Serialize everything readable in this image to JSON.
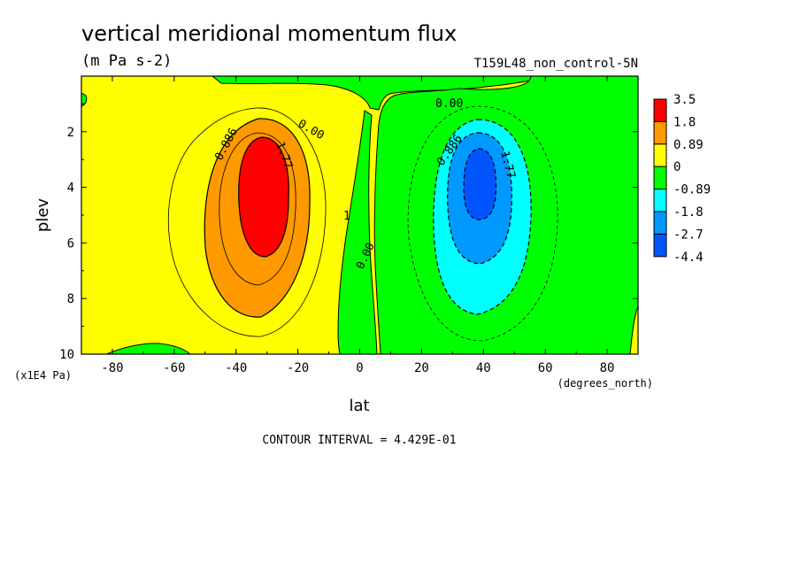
{
  "chart_data": {
    "type": "heatmap",
    "title": "vertical meridional momentum flux",
    "subtitle": "(m Pa s-2)",
    "run_label": "T159L48_non_control-5N",
    "xlabel": "lat",
    "xunits": "(degrees_north)",
    "ylabel": "plev",
    "yunits": "(x1E4 Pa)",
    "xlim": [
      -90,
      90
    ],
    "ylim": [
      10,
      0
    ],
    "x_ticks": [
      -80,
      -60,
      -40,
      -20,
      0,
      20,
      40,
      60,
      80
    ],
    "y_ticks": [
      2,
      4,
      6,
      8,
      10
    ],
    "contour_interval_label": "CONTOUR INTERVAL = 4.429E-01",
    "contour_labels": [
      "0.886",
      "1.77",
      "0.00",
      "0.00",
      "0.00",
      "0.886",
      "1.77",
      "1"
    ],
    "colorbar": {
      "levels": [
        "3.5",
        "1.8",
        "0.89",
        "0",
        "-0.89",
        "-1.8",
        "-2.7",
        "-4.4"
      ],
      "colors": [
        "#ff0000",
        "#ff9900",
        "#ffff00",
        "#00ff00",
        "#00ffff",
        "#0099ff",
        "#0055ff"
      ]
    },
    "features": [
      {
        "sign": "positive",
        "center_lat": -33,
        "center_plev": 3.8,
        "peak": 3.5
      },
      {
        "sign": "negative",
        "center_lat": 38,
        "center_plev": 3.5,
        "peak": -4.4
      }
    ]
  }
}
